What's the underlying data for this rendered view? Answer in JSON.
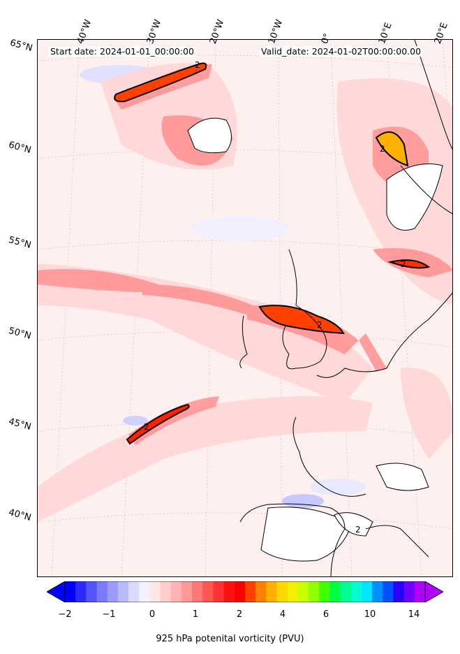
{
  "header": {
    "start_date": "Start date: 2024-01-01_00:00:00",
    "valid_date": "Valid_date: 2024-01-02T00:00:00.00"
  },
  "lon_labels": [
    "40°W",
    "30°W",
    "20°W",
    "10°W",
    "0°",
    "10°E",
    "20°E"
  ],
  "lat_labels": [
    "65°N",
    "60°N",
    "55°N",
    "50°N",
    "45°N",
    "40°N"
  ],
  "contour_labels": [
    "2",
    "2",
    "2",
    "2",
    "2",
    "2"
  ],
  "colorbar": {
    "ticks": [
      "−2",
      "−1",
      "0",
      "1",
      "2",
      "4",
      "6",
      "10",
      "14"
    ],
    "label": "925 hPa potenital vorticity (PVU)",
    "colors": [
      "#0000ff",
      "#2b2bff",
      "#5555ff",
      "#7a7aff",
      "#9a9aff",
      "#babaff",
      "#dadaff",
      "#f3f3ff",
      "#ffe6e6",
      "#ffcccc",
      "#ffb3b3",
      "#ff9999",
      "#ff7777",
      "#ff5555",
      "#ff3333",
      "#ff1111",
      "#ff0000",
      "#ff4000",
      "#ff8000",
      "#ffb000",
      "#ffd700",
      "#f0f000",
      "#c8ff00",
      "#90ff00",
      "#40ff00",
      "#00ff40",
      "#00ff90",
      "#00ffd0",
      "#00e5ff",
      "#0090ff",
      "#0050ff",
      "#2a00ff",
      "#7000ff",
      "#b000ff"
    ]
  }
}
